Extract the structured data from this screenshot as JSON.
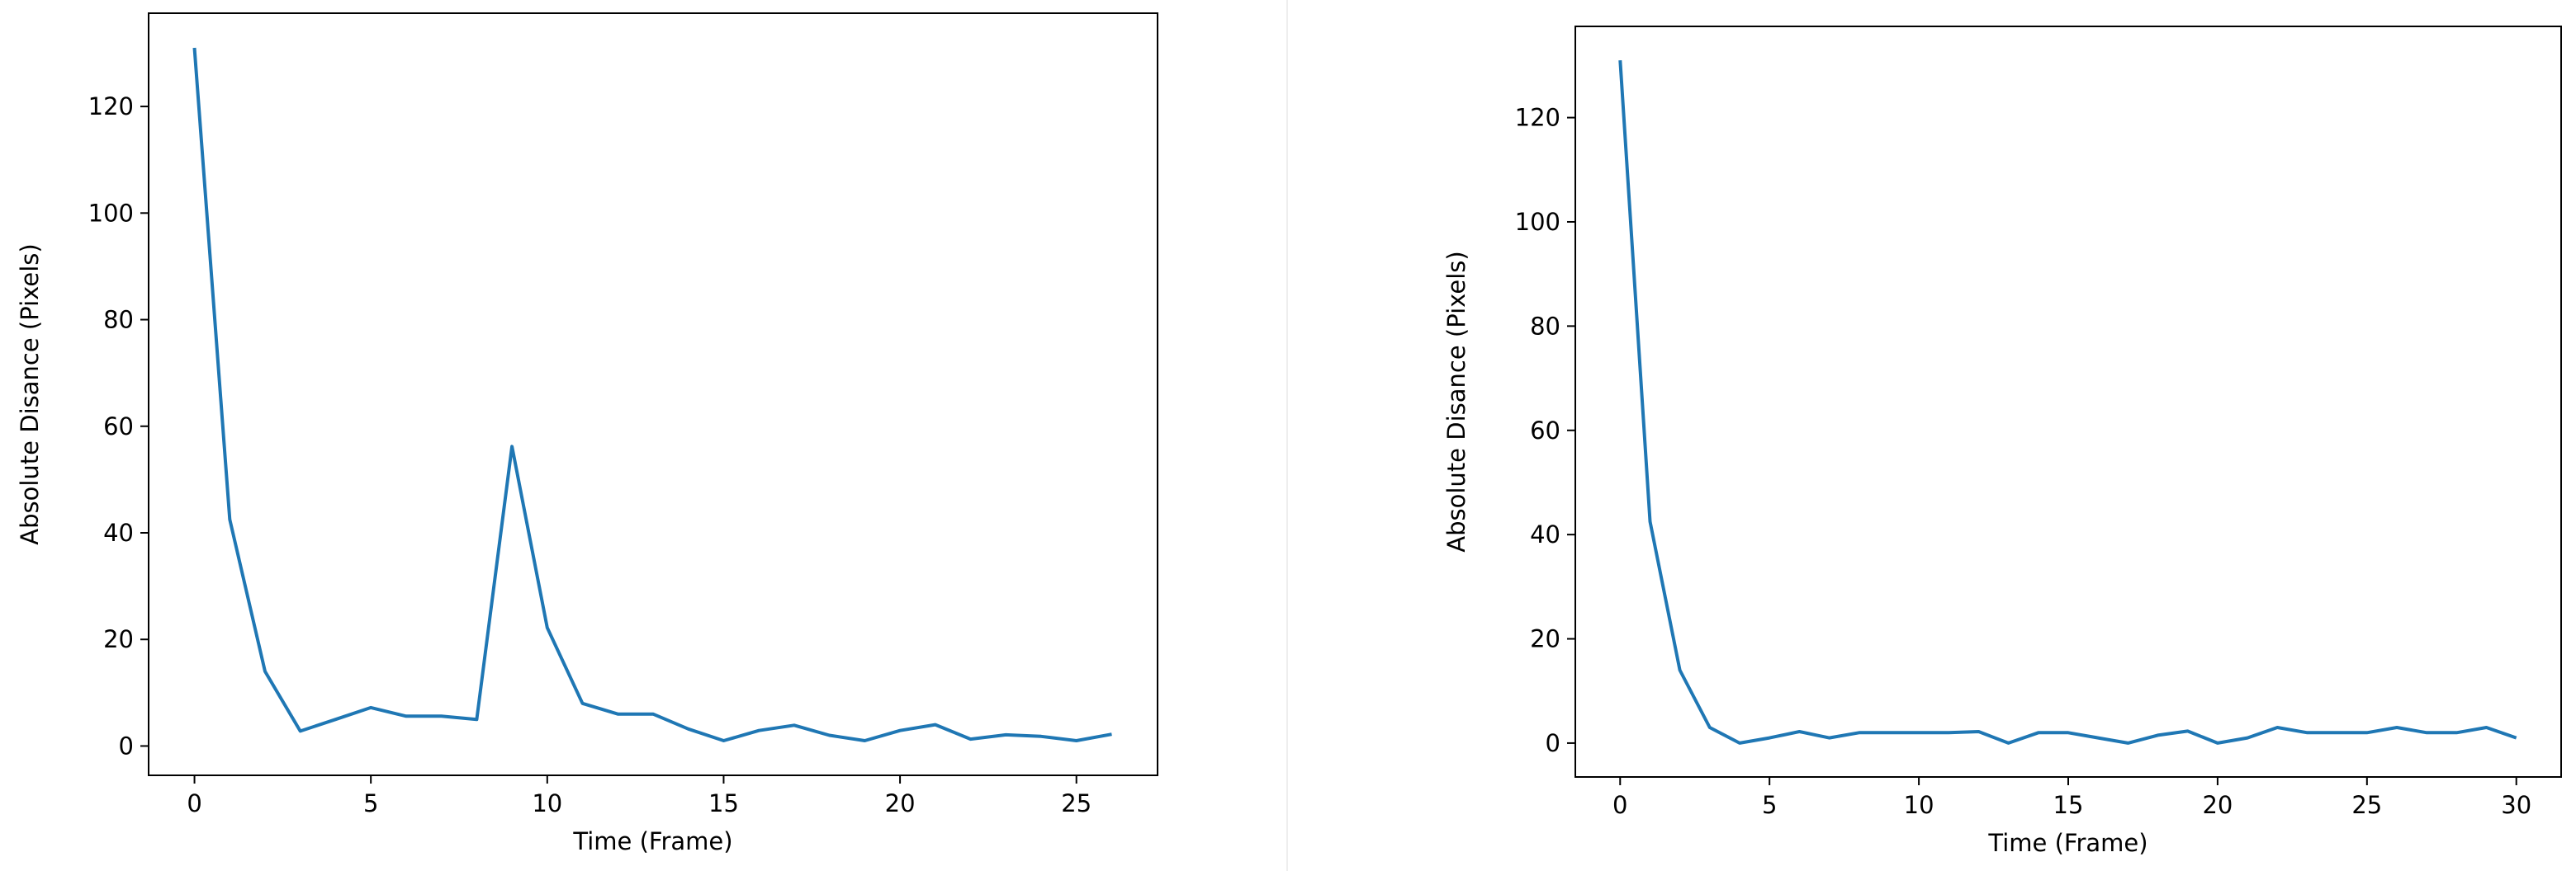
{
  "chart_data": [
    {
      "type": "line",
      "title": "",
      "xlabel": "Time (Frame)",
      "ylabel": "Absolute Disance (Pixels)",
      "xlim": [
        -1.3,
        27.3
      ],
      "ylim": [
        -5.5,
        137.5
      ],
      "xticks": [
        0,
        5,
        10,
        15,
        20,
        25
      ],
      "yticks": [
        0,
        20,
        40,
        60,
        80,
        100,
        120
      ],
      "grid": false,
      "color": "#1f77b4",
      "x": [
        0,
        1,
        2,
        3,
        4,
        5,
        6,
        7,
        8,
        9,
        10,
        11,
        12,
        13,
        14,
        15,
        16,
        17,
        18,
        19,
        20,
        21,
        22,
        23,
        24,
        25,
        26
      ],
      "values": [
        131,
        42.5,
        14,
        2.8,
        5,
        7.2,
        5.6,
        5.6,
        5,
        56.2,
        22.2,
        8,
        6,
        6,
        3.2,
        1,
        2.9,
        3.9,
        2,
        1,
        2.9,
        4,
        1.3,
        2.1,
        1.8,
        1,
        2.2
      ]
    },
    {
      "type": "line",
      "title": "",
      "xlabel": "Time (Frame)",
      "ylabel": "Absolute Disance (Pixels)",
      "xlim": [
        -1.5,
        31.5
      ],
      "ylim": [
        -6.5,
        137.5
      ],
      "xticks": [
        0,
        5,
        10,
        15,
        20,
        25,
        30
      ],
      "yticks": [
        0,
        20,
        40,
        60,
        80,
        100,
        120
      ],
      "grid": false,
      "color": "#1f77b4",
      "x": [
        0,
        1,
        2,
        3,
        4,
        5,
        6,
        7,
        8,
        9,
        10,
        11,
        12,
        13,
        14,
        15,
        16,
        17,
        18,
        19,
        20,
        21,
        22,
        23,
        24,
        25,
        26,
        27,
        28,
        29,
        30
      ],
      "values": [
        131,
        42.5,
        14,
        3,
        0,
        1,
        2.2,
        1,
        2,
        2,
        2,
        2,
        2.2,
        0,
        2,
        2,
        1,
        0,
        1.5,
        2.3,
        0,
        1,
        3,
        2,
        2,
        2,
        3,
        2,
        2,
        3,
        1
      ]
    }
  ]
}
